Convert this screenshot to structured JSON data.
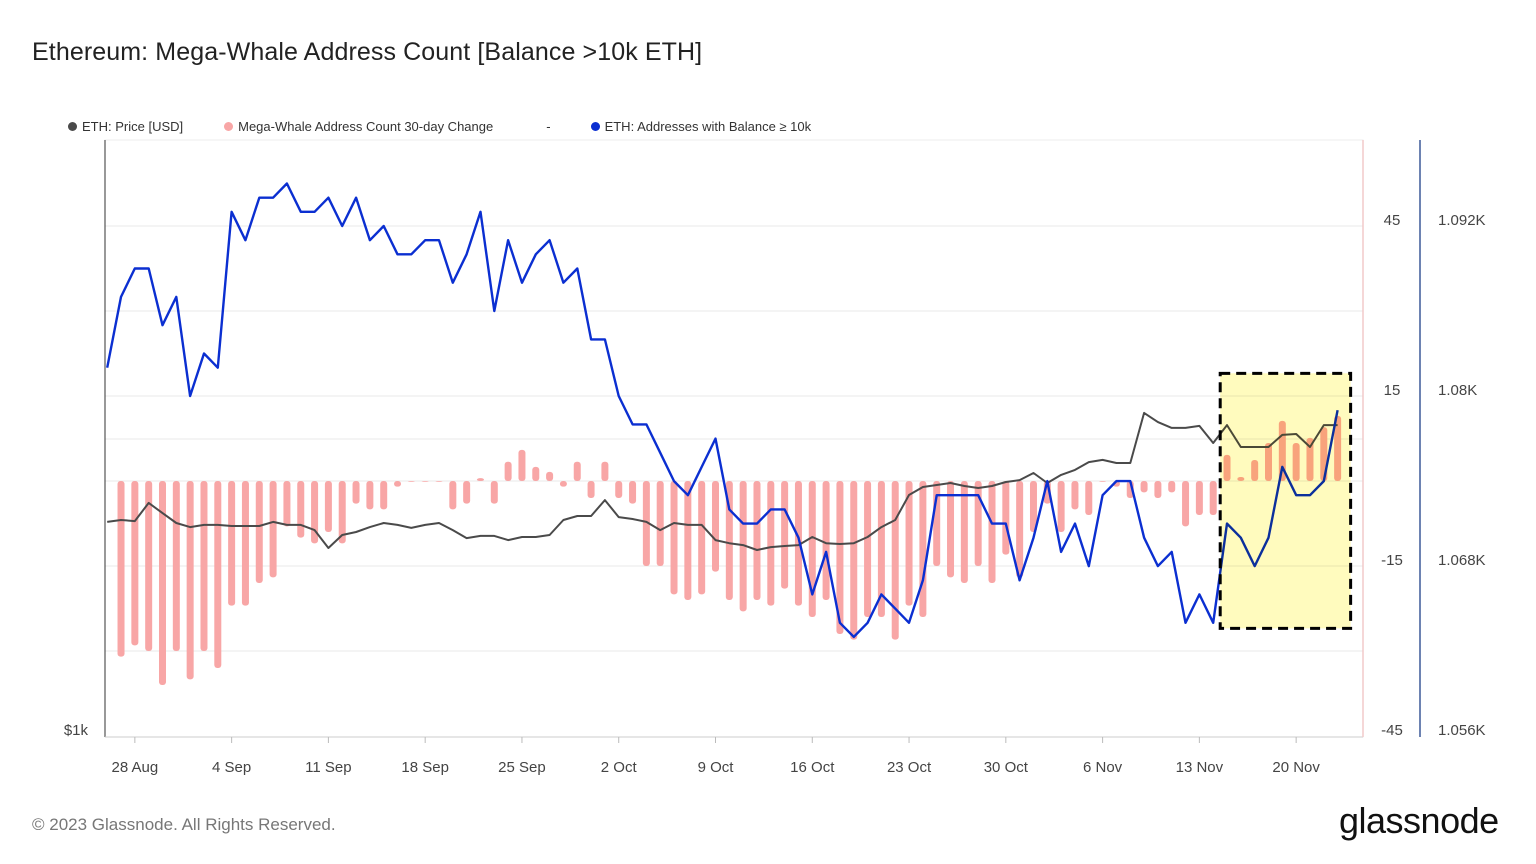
{
  "title": "Ethereum: Mega-Whale Address Count [Balance >10k ETH]",
  "legend": [
    {
      "label": "ETH: Price [USD]",
      "color": "#4a4a4a"
    },
    {
      "label": "Mega-Whale Address Count 30-day Change",
      "color": "#f8a6a6"
    },
    {
      "label": "-",
      "color": ""
    },
    {
      "label": "ETH: Addresses with Balance ≥ 10k",
      "color": "#0b2fd1"
    }
  ],
  "footer": "© 2023 Glassnode. All Rights Reserved.",
  "logo": "glassnode",
  "chart_data": {
    "type": "line+bar",
    "title": "Ethereum: Mega-Whale Address Count [Balance >10k ETH]",
    "grid": true,
    "legend_position": "top-left",
    "x": [
      "2023-08-26",
      "2023-08-27",
      "2023-08-28",
      "2023-08-29",
      "2023-08-30",
      "2023-08-31",
      "2023-09-01",
      "2023-09-02",
      "2023-09-03",
      "2023-09-04",
      "2023-09-05",
      "2023-09-06",
      "2023-09-07",
      "2023-09-08",
      "2023-09-09",
      "2023-09-10",
      "2023-09-11",
      "2023-09-12",
      "2023-09-13",
      "2023-09-14",
      "2023-09-15",
      "2023-09-16",
      "2023-09-17",
      "2023-09-18",
      "2023-09-19",
      "2023-09-20",
      "2023-09-21",
      "2023-09-22",
      "2023-09-23",
      "2023-09-24",
      "2023-09-25",
      "2023-09-26",
      "2023-09-27",
      "2023-09-28",
      "2023-09-29",
      "2023-09-30",
      "2023-10-01",
      "2023-10-02",
      "2023-10-03",
      "2023-10-04",
      "2023-10-05",
      "2023-10-06",
      "2023-10-07",
      "2023-10-08",
      "2023-10-09",
      "2023-10-10",
      "2023-10-11",
      "2023-10-12",
      "2023-10-13",
      "2023-10-14",
      "2023-10-15",
      "2023-10-16",
      "2023-10-17",
      "2023-10-18",
      "2023-10-19",
      "2023-10-20",
      "2023-10-21",
      "2023-10-22",
      "2023-10-23",
      "2023-10-24",
      "2023-10-25",
      "2023-10-26",
      "2023-10-27",
      "2023-10-28",
      "2023-10-29",
      "2023-10-30",
      "2023-10-31",
      "2023-11-01",
      "2023-11-02",
      "2023-11-03",
      "2023-11-04",
      "2023-11-05",
      "2023-11-06",
      "2023-11-07",
      "2023-11-08",
      "2023-11-09",
      "2023-11-10",
      "2023-11-11",
      "2023-11-12",
      "2023-11-13",
      "2023-11-14",
      "2023-11-15",
      "2023-11-16",
      "2023-11-17",
      "2023-11-18",
      "2023-11-19",
      "2023-11-20",
      "2023-11-21",
      "2023-11-22",
      "2023-11-23"
    ],
    "x_ticks": [
      {
        "date": "2023-08-28",
        "label": "28 Aug"
      },
      {
        "date": "2023-09-04",
        "label": "4 Sep"
      },
      {
        "date": "2023-09-11",
        "label": "11 Sep"
      },
      {
        "date": "2023-09-18",
        "label": "18 Sep"
      },
      {
        "date": "2023-09-25",
        "label": "25 Sep"
      },
      {
        "date": "2023-10-02",
        "label": "2 Oct"
      },
      {
        "date": "2023-10-09",
        "label": "9 Oct"
      },
      {
        "date": "2023-10-16",
        "label": "16 Oct"
      },
      {
        "date": "2023-10-23",
        "label": "23 Oct"
      },
      {
        "date": "2023-10-30",
        "label": "30 Oct"
      },
      {
        "date": "2023-11-06",
        "label": "6 Nov"
      },
      {
        "date": "2023-11-13",
        "label": "13 Nov"
      },
      {
        "date": "2023-11-20",
        "label": "20 Nov"
      }
    ],
    "axes": {
      "price": {
        "side": "left",
        "scale": "log",
        "tick_labels": [
          {
            "value": 1000,
            "label": "$1k"
          }
        ]
      },
      "change": {
        "side": "right",
        "range": [
          -45,
          60
        ],
        "tick_labels": [
          {
            "value": 45,
            "label": "45"
          },
          {
            "value": 15,
            "label": "15"
          },
          {
            "value": -15,
            "label": "-15"
          },
          {
            "value": -45,
            "label": "-45"
          }
        ]
      },
      "addresses": {
        "side": "right",
        "range": [
          1056,
          1093.8
        ],
        "tick_labels": [
          {
            "value": 1092,
            "label": "1.092K"
          },
          {
            "value": 1080,
            "label": "1.08K"
          },
          {
            "value": 1068,
            "label": "1.068K"
          },
          {
            "value": 1056,
            "label": "1.056K"
          }
        ]
      }
    },
    "series": [
      {
        "name": "ETH: Price [USD]",
        "type": "line",
        "axis": "price",
        "color": "#4a4a4a",
        "values": [
          1641,
          1648,
          1644,
          1713,
          1674,
          1637,
          1622,
          1630,
          1630,
          1626,
          1626,
          1626,
          1641,
          1630,
          1630,
          1611,
          1547,
          1593,
          1604,
          1622,
          1637,
          1630,
          1619,
          1630,
          1637,
          1611,
          1582,
          1590,
          1590,
          1575,
          1586,
          1586,
          1593,
          1648,
          1663,
          1663,
          1724,
          1659,
          1652,
          1641,
          1611,
          1637,
          1630,
          1630,
          1575,
          1564,
          1557,
          1540,
          1550,
          1554,
          1557,
          1586,
          1564,
          1561,
          1564,
          1586,
          1622,
          1648,
          1744,
          1776,
          1784,
          1792,
          1780,
          1772,
          1780,
          1796,
          1804,
          1833,
          1792,
          1825,
          1846,
          1879,
          1888,
          1875,
          1875,
          2100,
          2057,
          2030,
          2030,
          2039,
          1962,
          2043,
          1944,
          1944,
          1944,
          1998,
          2002,
          1944,
          2043,
          2043
        ]
      },
      {
        "name": "Mega-Whale Address Count 30-day Change",
        "type": "bar",
        "axis": "change",
        "color": "#f8a6a6",
        "values": [
          null,
          -31,
          -29,
          -30,
          -36,
          -30,
          -35,
          -30,
          -33,
          -22,
          -22,
          -18,
          -17,
          -8,
          -10,
          -11,
          -9,
          -11,
          -4,
          -5,
          -5,
          -1,
          0,
          0,
          0,
          -5,
          -4,
          0.5,
          -4,
          3.4,
          5.5,
          2.5,
          1.6,
          -1,
          3.4,
          -3,
          3.4,
          -3,
          -4,
          -15,
          -15,
          -20,
          -21,
          -20,
          -16,
          -21,
          -23,
          -21,
          -22,
          -19,
          -22,
          -24,
          -21,
          -27,
          -28,
          -24,
          -24,
          -28,
          -22,
          -24,
          -15,
          -17,
          -18,
          -15,
          -18,
          -13,
          -17,
          -9,
          -4,
          -9,
          -5,
          -6,
          0,
          -1,
          -3,
          -2,
          -3,
          -2,
          -8,
          -6,
          -6,
          4.6,
          0.7,
          3.7,
          6.7,
          10.6,
          6.7,
          7.6,
          9.5,
          11.5
        ]
      },
      {
        "name": "ETH: Addresses with Balance ≥ 10k",
        "type": "line",
        "axis": "addresses",
        "color": "#0b2fd1",
        "values": [
          1082,
          1087,
          1089,
          1089,
          1085,
          1087,
          1080,
          1083,
          1082,
          1093,
          1091,
          1094,
          1094,
          1095,
          1093,
          1093,
          1094,
          1092,
          1094,
          1091,
          1092,
          1090,
          1090,
          1091,
          1091,
          1088,
          1090,
          1093,
          1086,
          1091,
          1088,
          1090,
          1091,
          1088,
          1089,
          1084,
          1084,
          1080,
          1078,
          1078,
          1076,
          1074,
          1073,
          1075,
          1077,
          1072,
          1071,
          1071,
          1072,
          1072,
          1070,
          1066,
          1069,
          1064,
          1063,
          1064,
          1066,
          1065,
          1064,
          1067,
          1073,
          1073,
          1073,
          1073,
          1071,
          1071,
          1067,
          1070,
          1074,
          1069,
          1071,
          1068,
          1073,
          1074,
          1074,
          1070,
          1068,
          1069,
          1064,
          1066,
          1064,
          1071,
          1070,
          1068,
          1070,
          1075,
          1073,
          1073,
          1074,
          1079
        ]
      }
    ],
    "annotations": [
      {
        "type": "highlight-box",
        "style": "dashed",
        "fill": "#fffbbe",
        "border": "#000000",
        "x_range": [
          "2023-11-14",
          "2023-11-23"
        ],
        "y_range_change_axis": [
          -26,
          19
        ]
      }
    ]
  }
}
